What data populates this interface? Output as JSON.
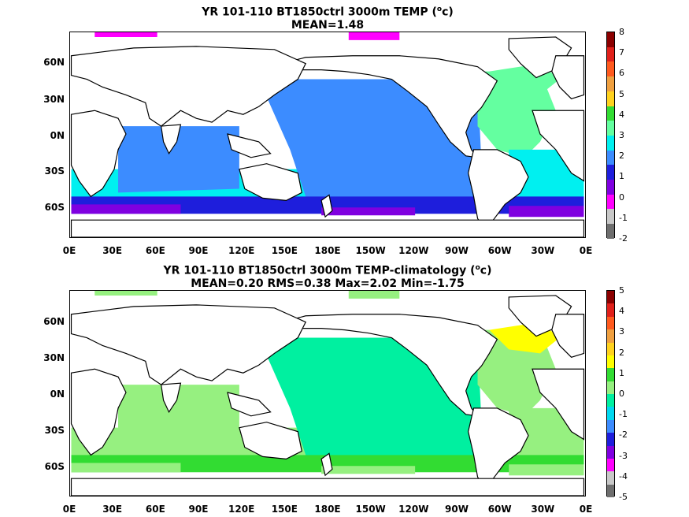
{
  "panels": [
    {
      "title_line1": "YR 101-110 BT1850ctrl 3000m TEMP (",
      "title_sup": "o",
      "title_unit": "c)",
      "title_line2": "MEAN=1.48",
      "colorbar_ticks": [
        "8",
        "7",
        "6",
        "5",
        "4",
        "3",
        "2",
        "1",
        "0",
        "-1",
        "-2"
      ],
      "colorbar_colors": [
        "#8b0000",
        "#e0201a",
        "#ff5a1e",
        "#f0a040",
        "#ffd21e",
        "#32dc32",
        "#64ffa0",
        "#00f0f0",
        "#3c8cff",
        "#1e1edc",
        "#7f00e0",
        "#ff00ff",
        "#c8c8c8",
        "#6e6e6e"
      ],
      "ocean_regions": {
        "pacific": "#3c8cff",
        "atlantic_mid": "#64ffa0",
        "atlantic_south": "#00f0f0",
        "north_atlantic": "#64ffa0",
        "indian": "#3c8cff",
        "southern_upper": "#00f0f0",
        "southern_mid": "#1e1edc",
        "southern_low": "#7f00e0",
        "arctic_patch": "#ff00ff"
      }
    },
    {
      "title_line1": "YR 101-110 BT1850ctrl 3000m TEMP-climatology (",
      "title_sup": "o",
      "title_unit": "c)",
      "title_line2": "MEAN=0.20   RMS=0.38   Max=2.02   Min=-1.75",
      "colorbar_ticks": [
        "5",
        "4",
        "3",
        "2",
        "1",
        "0",
        "-1",
        "-2",
        "-3",
        "-4",
        "-5"
      ],
      "colorbar_colors": [
        "#8b0000",
        "#e0201a",
        "#ff5a1e",
        "#f0a040",
        "#ffd21e",
        "#ffff00",
        "#32dc32",
        "#96f080",
        "#00f0a0",
        "#00d8f0",
        "#3c8cff",
        "#1e1edc",
        "#7f00e0",
        "#ff00ff",
        "#c8c8c8",
        "#6e6e6e"
      ],
      "ocean_regions": {
        "pacific": "#00f0a0",
        "atlantic_mid": "#96f080",
        "atlantic_south": "#96f080",
        "north_atlantic": "#ffff00",
        "indian": "#96f080",
        "southern_upper": "#96f080",
        "southern_mid": "#32dc32",
        "southern_low": "#96f080",
        "arctic_patch": "#96f080"
      }
    }
  ],
  "lat_labels": [
    "60N",
    "30N",
    "0N",
    "30S",
    "60S"
  ],
  "lon_labels": [
    "0E",
    "30E",
    "60E",
    "90E",
    "120E",
    "150E",
    "180E",
    "150W",
    "120W",
    "90W",
    "60W",
    "30W",
    "0E"
  ]
}
